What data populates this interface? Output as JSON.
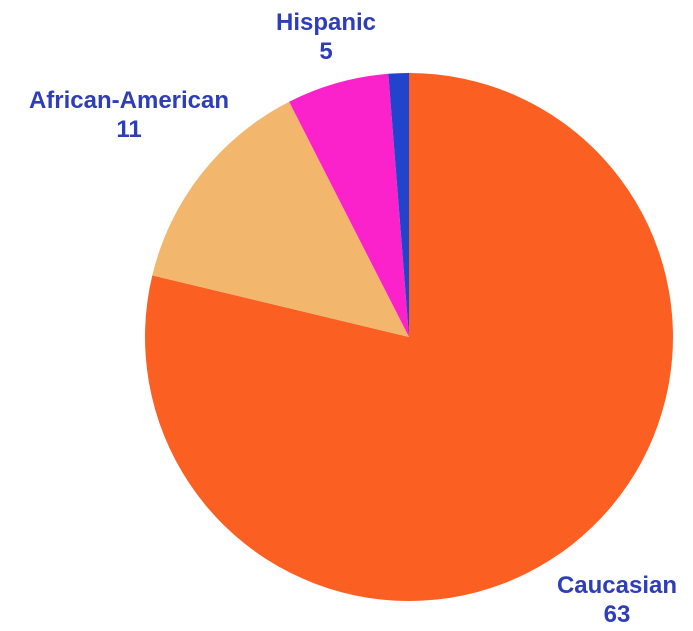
{
  "chart_data": {
    "type": "pie",
    "categories": [
      "Caucasian",
      "African-American",
      "Hispanic",
      ""
    ],
    "values": [
      63,
      11,
      5,
      1
    ],
    "value_labels": [
      "63",
      "11",
      "5",
      ""
    ],
    "colors": [
      "#FC5F22",
      "#F2B76C",
      "#FC22CB",
      "#2244CC"
    ],
    "label_color": "#2E3DB8",
    "start_angle_deg": 0,
    "direction": "clockwise"
  }
}
